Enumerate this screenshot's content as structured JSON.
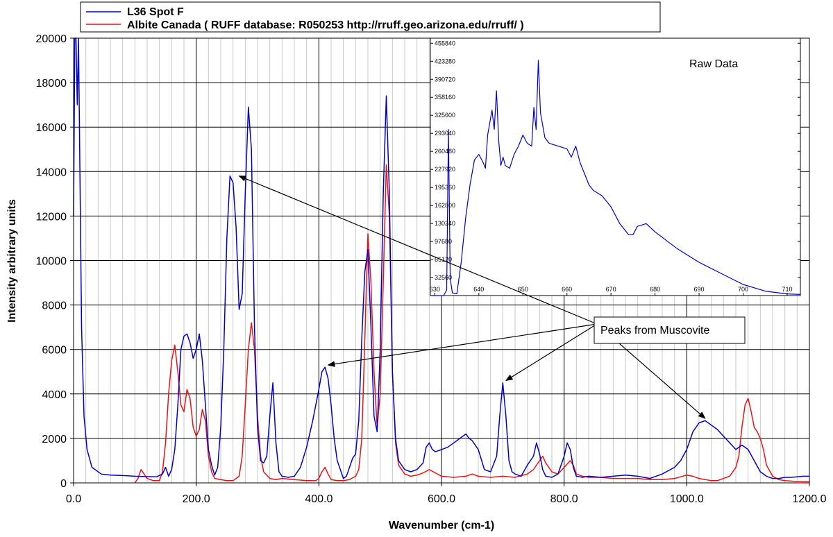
{
  "chart_data": [
    {
      "type": "line",
      "title": "",
      "xlabel": "Wavenumber (cm-1)",
      "ylabel": "Intensity arbitrary units",
      "xlim": [
        0,
        1200
      ],
      "ylim": [
        0,
        20000
      ],
      "x_ticks": [
        0,
        200,
        400,
        600,
        800,
        1000,
        1200
      ],
      "x_tick_labels": [
        "0.0",
        "200.0",
        "400.0",
        "600.0",
        "800.0",
        "1000.0",
        "1200.0"
      ],
      "y_ticks": [
        0,
        2000,
        4000,
        6000,
        8000,
        10000,
        12000,
        14000,
        16000,
        18000,
        20000
      ],
      "y_tick_labels": [
        "0",
        "2000",
        "4000",
        "6000",
        "8000",
        "10000",
        "12000",
        "14000",
        "16000",
        "18000",
        "20000"
      ],
      "grid": true,
      "legend_position": "top",
      "series": [
        {
          "name": "L36 Spot F",
          "color": "#0000cc",
          "x": [
            0,
            2,
            4,
            6,
            8,
            10,
            13,
            17,
            22,
            30,
            45,
            60,
            80,
            100,
            120,
            135,
            145,
            150,
            155,
            160,
            165,
            170,
            175,
            180,
            185,
            190,
            195,
            200,
            205,
            210,
            215,
            220,
            225,
            230,
            235,
            240,
            245,
            250,
            255,
            260,
            265,
            270,
            275,
            280,
            285,
            290,
            295,
            300,
            305,
            310,
            315,
            320,
            325,
            330,
            335,
            340,
            350,
            360,
            370,
            380,
            390,
            400,
            405,
            410,
            415,
            420,
            425,
            430,
            440,
            445,
            450,
            455,
            460,
            465,
            470,
            475,
            480,
            485,
            490,
            495,
            500,
            505,
            510,
            515,
            520,
            525,
            530,
            540,
            550,
            560,
            570,
            575,
            580,
            585,
            590,
            600,
            610,
            620,
            630,
            635,
            640,
            645,
            650,
            660,
            670,
            680,
            690,
            695,
            700,
            705,
            710,
            715,
            720,
            730,
            740,
            750,
            755,
            760,
            765,
            770,
            780,
            790,
            800,
            805,
            810,
            815,
            820,
            830,
            840,
            860,
            880,
            900,
            920,
            940,
            960,
            980,
            990,
            1000,
            1010,
            1020,
            1030,
            1040,
            1050,
            1060,
            1070,
            1080,
            1090,
            1100,
            1110,
            1120,
            1130,
            1140,
            1150,
            1160,
            1170,
            1180,
            1190,
            1200
          ],
          "y": [
            12000,
            20000,
            20000,
            17000,
            20000,
            15000,
            7000,
            3000,
            1500,
            700,
            400,
            350,
            330,
            300,
            280,
            270,
            400,
            700,
            300,
            600,
            1500,
            3500,
            6000,
            6600,
            6700,
            6300,
            5600,
            6000,
            6700,
            5500,
            3500,
            1500,
            800,
            350,
            700,
            2500,
            6000,
            11000,
            13800,
            13500,
            11500,
            7800,
            8500,
            13000,
            16900,
            15000,
            7000,
            2500,
            1000,
            900,
            1200,
            3000,
            4500,
            1800,
            500,
            300,
            250,
            300,
            700,
            1600,
            2800,
            4200,
            5000,
            5200,
            4700,
            3500,
            2000,
            1000,
            200,
            300,
            700,
            1100,
            1300,
            2800,
            6500,
            9500,
            10500,
            7000,
            3000,
            2300,
            6000,
            13000,
            17400,
            13000,
            5000,
            2000,
            1000,
            600,
            500,
            600,
            900,
            1600,
            1800,
            1500,
            1400,
            1500,
            1600,
            1800,
            2000,
            2100,
            2200,
            2000,
            1900,
            1500,
            600,
            500,
            1200,
            3000,
            4500,
            3000,
            1000,
            500,
            400,
            300,
            800,
            1200,
            1800,
            1300,
            600,
            300,
            250,
            400,
            1200,
            1800,
            1500,
            700,
            300,
            250,
            300,
            250,
            300,
            350,
            300,
            200,
            400,
            700,
            1000,
            1500,
            2300,
            2700,
            2800,
            2600,
            2400,
            2100,
            1800,
            1500,
            1700,
            1500,
            1000,
            500,
            300,
            200,
            200,
            250,
            250,
            270,
            300,
            300
          ]
        },
        {
          "name": "Albite Canada ( RUFF database: R050253  http://rruff.geo.arizona.edu/rruff/ )",
          "color": "#ee1111",
          "x": [
            100,
            105,
            110,
            115,
            120,
            130,
            140,
            145,
            150,
            155,
            160,
            165,
            170,
            175,
            180,
            185,
            190,
            195,
            200,
            205,
            210,
            215,
            220,
            225,
            230,
            240,
            250,
            260,
            270,
            275,
            280,
            285,
            290,
            295,
            300,
            305,
            310,
            320,
            330,
            340,
            360,
            380,
            395,
            400,
            405,
            410,
            415,
            420,
            430,
            440,
            450,
            460,
            465,
            470,
            475,
            480,
            485,
            490,
            495,
            500,
            505,
            510,
            515,
            520,
            525,
            530,
            540,
            550,
            560,
            570,
            580,
            590,
            600,
            620,
            640,
            650,
            660,
            680,
            700,
            720,
            740,
            750,
            760,
            765,
            770,
            780,
            790,
            800,
            810,
            815,
            820,
            830,
            840,
            860,
            880,
            900,
            920,
            940,
            960,
            980,
            1000,
            1010,
            1020,
            1030,
            1040,
            1050,
            1060,
            1070,
            1080,
            1085,
            1090,
            1095,
            1100,
            1105,
            1110,
            1115,
            1120,
            1125,
            1130,
            1140,
            1150,
            1160,
            1170,
            1180,
            1190,
            1200
          ],
          "y": [
            0,
            200,
            600,
            400,
            200,
            100,
            100,
            500,
            1800,
            4000,
            5500,
            6200,
            5000,
            3500,
            3200,
            4200,
            3800,
            2500,
            2100,
            2400,
            3300,
            2800,
            1200,
            500,
            200,
            150,
            100,
            100,
            300,
            1200,
            3500,
            6000,
            7200,
            6000,
            3000,
            1200,
            500,
            200,
            150,
            200,
            150,
            100,
            100,
            200,
            500,
            700,
            400,
            150,
            100,
            100,
            150,
            300,
            600,
            2000,
            6500,
            11200,
            9000,
            5000,
            2500,
            4000,
            9000,
            14300,
            12000,
            5000,
            1800,
            800,
            400,
            300,
            350,
            450,
            600,
            450,
            300,
            250,
            300,
            400,
            300,
            250,
            300,
            250,
            400,
            600,
            1000,
            1200,
            900,
            500,
            400,
            700,
            1000,
            800,
            400,
            300,
            250,
            250,
            200,
            200,
            200,
            150,
            150,
            200,
            350,
            300,
            200,
            150,
            100,
            100,
            200,
            300,
            700,
            1200,
            2500,
            3500,
            3800,
            3200,
            2500,
            2300,
            2000,
            1500,
            800,
            300,
            150,
            100,
            80,
            60,
            50,
            50
          ]
        }
      ],
      "annotations": [
        {
          "text": "Peaks from Muscovite",
          "arrow_targets": [
            [
              270,
              13800
            ],
            [
              415,
              5300
            ],
            [
              705,
              4600
            ],
            [
              1030,
              2900
            ]
          ]
        }
      ]
    },
    {
      "type": "line",
      "title": "Raw Data",
      "xlim": [
        629,
        713
      ],
      "ylim": [
        0,
        465000
      ],
      "x_ticks": [
        630,
        640,
        650,
        660,
        670,
        680,
        690,
        700,
        710
      ],
      "x_tick_labels": [
        "630",
        "640",
        "650",
        "660",
        "670",
        "680",
        "690",
        "700",
        "710"
      ],
      "y_ticks": [
        32560,
        65120,
        97680,
        130240,
        162800,
        195360,
        227920,
        260480,
        293040,
        325600,
        358160,
        390720,
        423280,
        455840
      ],
      "y_tick_labels": [
        "32560",
        "65120",
        "97680",
        "130240",
        "162800",
        "195360",
        "227920",
        "260480",
        "293040",
        "325600",
        "358160",
        "390720",
        "423280",
        "455840"
      ],
      "grid": false,
      "series": [
        {
          "color": "#0000cc",
          "x": [
            629,
            632,
            632.7,
            633.1,
            633.5,
            634,
            635,
            636,
            637,
            638,
            639,
            640,
            641,
            641.5,
            642,
            643,
            643.5,
            644,
            644.5,
            645,
            645.5,
            646,
            647,
            648,
            649,
            650,
            651,
            652,
            652.5,
            653,
            653.5,
            654,
            655,
            656,
            658,
            660,
            661,
            662,
            663,
            664,
            665,
            666,
            667,
            668,
            670,
            672,
            674,
            675,
            676,
            678,
            680,
            685,
            690,
            695,
            700,
            705,
            710,
            713
          ],
          "y": [
            0,
            0,
            10000,
            300000,
            30000,
            5000,
            3000,
            60000,
            140000,
            200000,
            245000,
            255000,
            240000,
            230000,
            290000,
            335000,
            300000,
            370000,
            280000,
            235000,
            250000,
            235000,
            230000,
            255000,
            270000,
            290000,
            275000,
            270000,
            340000,
            300000,
            425000,
            330000,
            285000,
            275000,
            270000,
            265000,
            250000,
            270000,
            240000,
            220000,
            200000,
            190000,
            185000,
            180000,
            160000,
            130000,
            110000,
            110000,
            125000,
            130000,
            115000,
            85000,
            60000,
            40000,
            20000,
            8000,
            3000,
            2000
          ]
        }
      ]
    }
  ]
}
